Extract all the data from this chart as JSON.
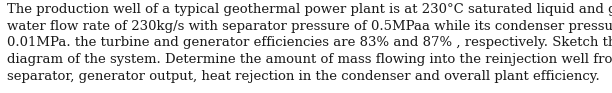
{
  "text": "The production well of a typical geothermal power plant is at 230°C saturated liquid and ground\nwater flow rate of 230kg/s with separator pressure of 0.5MPaa while its condenser pressure is at\n0.01MPa. the turbine and generator efficiencies are 83% and 87% , respectively. Sketch the T-s\ndiagram of the system. Determine the amount of mass flowing into the reinjection well from the\nseparator, generator output, heat rejection in the condenser and overall plant efficiency.",
  "font_size": 9.5,
  "font_family": "DejaVu Serif",
  "text_color": "#1a1a1a",
  "background_color": "#ffffff",
  "figwidth": 6.12,
  "figheight": 0.93,
  "dpi": 100,
  "linespacing": 1.38
}
